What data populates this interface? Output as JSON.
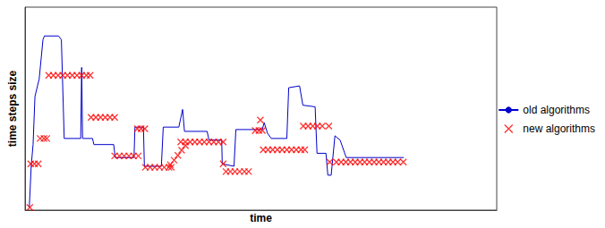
{
  "chart_data": {
    "type": "line",
    "x_label": "time",
    "y_label": "time steps size",
    "xlim": [
      0,
      100
    ],
    "ylim": [
      0,
      100
    ],
    "tick_labels": false,
    "grid": false,
    "legend": "right",
    "series": [
      {
        "name": "old algorithms",
        "type": "line",
        "color": "#0000cc",
        "line_style": "solid",
        "x": [
          0.9,
          1.3,
          1.7,
          2.1,
          3.0,
          3.8,
          4.1,
          7.1,
          7.7,
          8.3,
          11.8,
          12.0,
          12.2,
          14.3,
          14.6,
          18.8,
          19.1,
          23.1,
          23.3,
          25.1,
          25.3,
          28.9,
          29.3,
          32.6,
          33.0,
          33.4,
          33.8,
          38.6,
          39.0,
          41.7,
          41.8,
          44.3,
          44.7,
          50.3,
          50.7,
          51.4,
          52.2,
          55.5,
          55.9,
          58.2,
          58.9,
          61.5,
          61.9,
          63.8,
          64.2,
          64.9,
          65.7,
          66.8,
          68.1,
          80.3
        ],
        "values": [
          1.3,
          21.6,
          32.3,
          56.0,
          64.7,
          84.0,
          85.8,
          85.8,
          84.0,
          35.3,
          35.3,
          70.3,
          35.3,
          35.3,
          32.3,
          32.3,
          25.9,
          25.9,
          40.9,
          40.9,
          21.6,
          21.6,
          40.9,
          40.9,
          45.3,
          49.6,
          38.8,
          38.8,
          34.5,
          34.5,
          22.8,
          21.6,
          39.7,
          39.7,
          43.1,
          37.9,
          35.3,
          35.3,
          60.3,
          61.2,
          51.7,
          50.9,
          28.0,
          28.0,
          17.2,
          17.2,
          36.6,
          34.5,
          25.9,
          25.9
        ]
      },
      {
        "name": "new algorithms",
        "type": "scatter",
        "color": "#ff0000",
        "marker": "x",
        "x": [
          1.0,
          1.2,
          2.0,
          2.8,
          3.2,
          4.0,
          4.6,
          5,
          6,
          7,
          8,
          9,
          10,
          11,
          12,
          13,
          13.8,
          14,
          15,
          16,
          17,
          18,
          19,
          19,
          20,
          21,
          22,
          23,
          24,
          23.8,
          24.6,
          25.4,
          25.5,
          26.5,
          27.5,
          28.5,
          29.5,
          30.5,
          31,
          30.8,
          31.6,
          32.4,
          33.2,
          34,
          33,
          34,
          35,
          36,
          37,
          38,
          39,
          40,
          41,
          42,
          42.0,
          42.6,
          43.5,
          44.5,
          45.5,
          46.5,
          47.4,
          48.8,
          49.6,
          50.3,
          49.9,
          50.5,
          51.5,
          52.5,
          53.5,
          54.5,
          55.5,
          56.5,
          57.5,
          58.5,
          59.3,
          59,
          60,
          61,
          62,
          63,
          64.4,
          64.6,
          66,
          67,
          68,
          69,
          70,
          71,
          72,
          73,
          74,
          75,
          76,
          77,
          78,
          79,
          80.2
        ],
        "values": [
          1.3,
          22.8,
          22.8,
          22.8,
          35.3,
          35.3,
          35.3,
          66.4,
          66.4,
          66.4,
          66.4,
          66.4,
          66.4,
          66.4,
          66.4,
          66.4,
          66.4,
          45.7,
          45.7,
          45.7,
          45.7,
          45.7,
          45.7,
          26.7,
          26.7,
          26.7,
          26.7,
          26.7,
          26.7,
          40.1,
          40.1,
          40.1,
          21.1,
          21.1,
          21.1,
          21.1,
          21.1,
          21.1,
          21.1,
          22.4,
          24.6,
          27.0,
          29.5,
          31.8,
          33.6,
          33.6,
          33.6,
          33.6,
          33.6,
          33.6,
          33.6,
          33.6,
          33.6,
          33.6,
          22.8,
          19.0,
          19.0,
          19.0,
          19.0,
          19.0,
          19.0,
          39.2,
          39.2,
          39.2,
          44.4,
          29.7,
          29.7,
          29.7,
          29.7,
          29.7,
          29.7,
          29.7,
          29.7,
          29.7,
          29.7,
          41.4,
          41.4,
          41.4,
          41.4,
          41.4,
          41.4,
          23.7,
          23.7,
          23.7,
          23.7,
          23.7,
          23.7,
          23.7,
          23.7,
          23.7,
          23.7,
          23.7,
          23.7,
          23.7,
          23.7,
          23.7,
          23.7
        ]
      }
    ]
  }
}
